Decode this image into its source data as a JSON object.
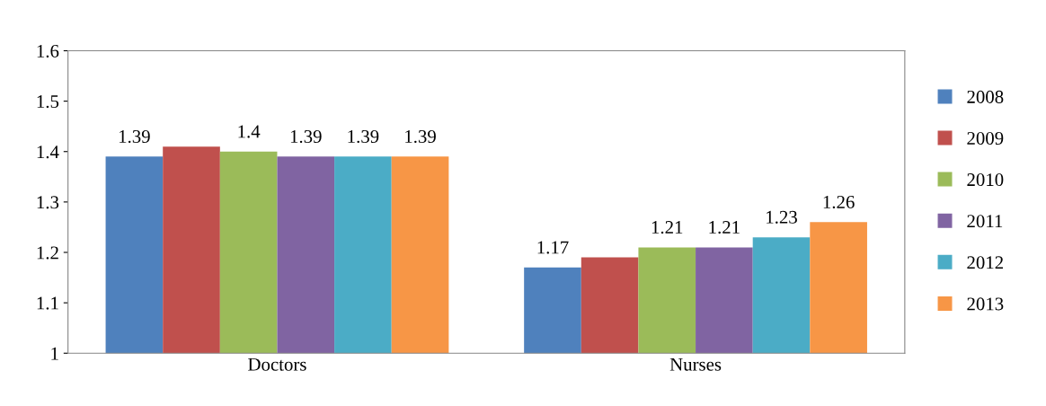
{
  "chart_data": {
    "type": "bar",
    "categories": [
      "Doctors",
      "Nurses"
    ],
    "series": [
      {
        "name": "2008",
        "color": "#4f81bd",
        "values": [
          1.39,
          1.17
        ],
        "value_labels": [
          "1.39",
          "1.17"
        ]
      },
      {
        "name": "2009",
        "color": "#c0504d",
        "values": [
          1.41,
          1.19
        ],
        "value_labels": [
          null,
          null
        ]
      },
      {
        "name": "2010",
        "color": "#9bbb59",
        "values": [
          1.4,
          1.21
        ],
        "value_labels": [
          "1.4",
          "1.21"
        ]
      },
      {
        "name": "2011",
        "color": "#8064a2",
        "values": [
          1.39,
          1.21
        ],
        "value_labels": [
          "1.39",
          "1.21"
        ]
      },
      {
        "name": "2012",
        "color": "#4bacc6",
        "values": [
          1.39,
          1.23
        ],
        "value_labels": [
          "1.39",
          "1.23"
        ]
      },
      {
        "name": "2013",
        "color": "#f79646",
        "values": [
          1.39,
          1.26
        ],
        "value_labels": [
          "1.39",
          "1.26"
        ]
      }
    ],
    "ylim": [
      1,
      1.6
    ],
    "yticks": [
      1,
      1.1,
      1.2,
      1.3,
      1.4,
      1.5,
      1.6
    ],
    "grid": false,
    "legend": "right"
  }
}
